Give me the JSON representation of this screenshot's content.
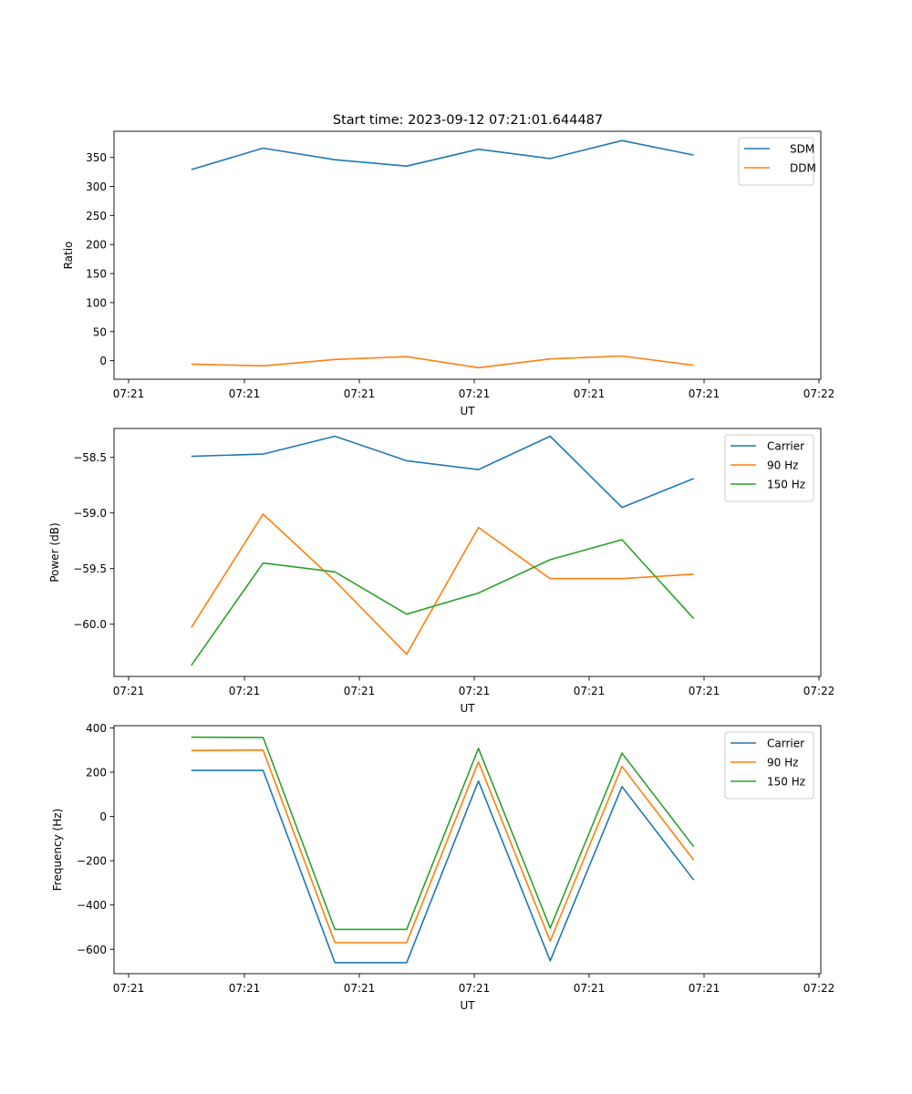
{
  "figure": {
    "title": "Start time: 2023-09-12 07:21:01.644487"
  },
  "chart_data": [
    {
      "type": "line",
      "xlabel": "UT",
      "ylabel": "Ratio",
      "x_tick_labels": [
        "07:21",
        "07:21",
        "07:21",
        "07:21",
        "07:21",
        "07:21",
        "07:22"
      ],
      "xlim": [
        -0.2,
        6.2
      ],
      "ylim": [
        -32,
        395
      ],
      "y_ticks": [
        0,
        50,
        100,
        150,
        200,
        250,
        300,
        350
      ],
      "y_tick_labels": [
        "0",
        "50",
        "100",
        "150",
        "200",
        "250",
        "300",
        "350"
      ],
      "legend_position": "top-right",
      "x": [
        0.5,
        1.15,
        1.8,
        2.45,
        3.1,
        3.75,
        4.4,
        5.05
      ],
      "series": [
        {
          "name": "SDM",
          "color": "#1f77b4",
          "values": [
            329,
            366,
            346,
            335,
            364,
            348,
            379,
            354
          ]
        },
        {
          "name": "DDM",
          "color": "#ff7f0e",
          "values": [
            -6,
            -9,
            2,
            7,
            -12,
            3,
            8,
            -8
          ]
        }
      ]
    },
    {
      "type": "line",
      "xlabel": "UT",
      "ylabel": "Power (dB)",
      "x_tick_labels": [
        "07:21",
        "07:21",
        "07:21",
        "07:21",
        "07:21",
        "07:21",
        "07:22"
      ],
      "xlim": [
        -0.2,
        6.2
      ],
      "ylim": [
        -60.47,
        -58.24
      ],
      "y_ticks": [
        -58.5,
        -59.0,
        -59.5,
        -60.0
      ],
      "y_tick_labels": [
        "−58.5",
        "−59.0",
        "−59.5",
        "−60.0"
      ],
      "legend_position": "top-right",
      "x": [
        0.5,
        1.15,
        1.8,
        2.45,
        3.1,
        3.75,
        4.4,
        5.05
      ],
      "series": [
        {
          "name": "Carrier",
          "color": "#1f77b4",
          "values": [
            -58.49,
            -58.47,
            -58.31,
            -58.53,
            -58.61,
            -58.31,
            -58.95,
            -58.69
          ]
        },
        {
          "name": "90 Hz",
          "color": "#ff7f0e",
          "values": [
            -60.03,
            -59.01,
            -59.61,
            -60.27,
            -59.13,
            -59.59,
            -59.59,
            -59.55
          ]
        },
        {
          "name": "150 Hz",
          "color": "#2ca02c",
          "values": [
            -60.37,
            -59.45,
            -59.53,
            -59.91,
            -59.72,
            -59.42,
            -59.24,
            -59.95
          ]
        }
      ]
    },
    {
      "type": "line",
      "xlabel": "UT",
      "ylabel": "Frequency (Hz)",
      "x_tick_labels": [
        "07:21",
        "07:21",
        "07:21",
        "07:21",
        "07:21",
        "07:21",
        "07:22"
      ],
      "xlim": [
        -0.2,
        6.2
      ],
      "ylim": [
        -710,
        410
      ],
      "y_ticks": [
        400,
        200,
        0,
        -200,
        -400,
        -600
      ],
      "y_tick_labels": [
        "400",
        "200",
        "0",
        "−200",
        "−400",
        "−600"
      ],
      "legend_position": "top-right",
      "x": [
        0.5,
        1.15,
        1.8,
        2.45,
        3.1,
        3.75,
        4.4,
        5.05
      ],
      "series": [
        {
          "name": "Carrier",
          "color": "#1f77b4",
          "values": [
            208,
            208,
            -660,
            -660,
            160,
            -652,
            135,
            -287
          ]
        },
        {
          "name": "90 Hz",
          "color": "#ff7f0e",
          "values": [
            298,
            300,
            -570,
            -570,
            247,
            -563,
            226,
            -197
          ]
        },
        {
          "name": "150 Hz",
          "color": "#2ca02c",
          "values": [
            358,
            357,
            -510,
            -510,
            308,
            -504,
            286,
            -137
          ]
        }
      ]
    }
  ]
}
